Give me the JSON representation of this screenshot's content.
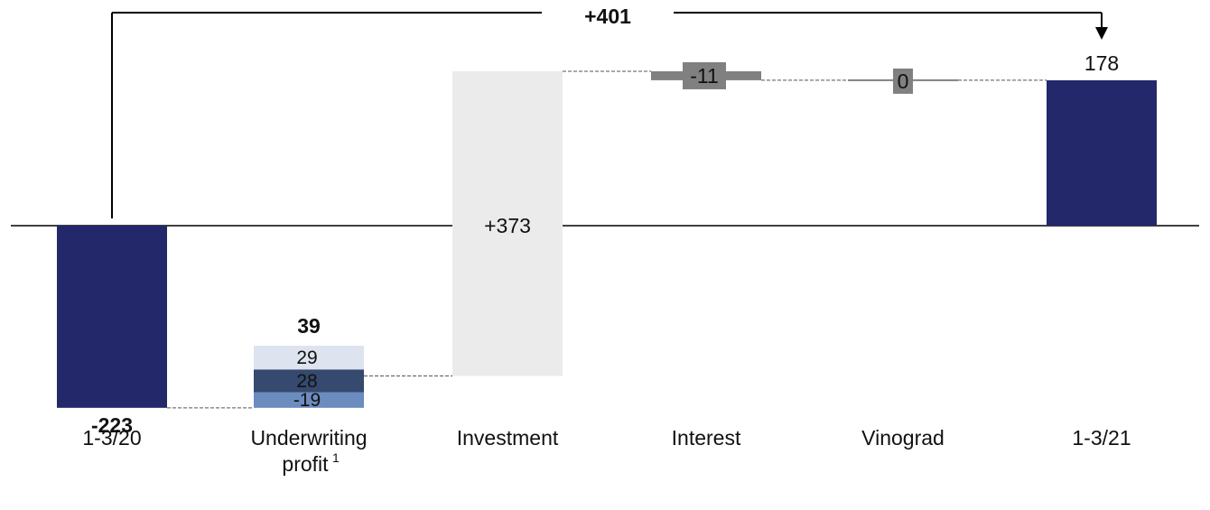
{
  "chart_data": {
    "type": "bar",
    "subtype": "waterfall",
    "categories": [
      "1-3/20",
      "Underwriting",
      "Investment",
      "Interest",
      "Vinograd",
      "1-3/21"
    ],
    "category_label_second_lines": [
      "",
      "profit",
      "",
      "",
      "",
      ""
    ],
    "footnote_marker": "1",
    "steps": [
      {
        "category": "1-3/20",
        "kind": "total",
        "value": -223,
        "label": "-223"
      },
      {
        "category": "Underwriting profit",
        "kind": "delta",
        "value": 39,
        "label": "39",
        "segments": [
          {
            "value": 29,
            "label": "29",
            "color": "#dde3ef"
          },
          {
            "value": 28,
            "label": "28",
            "color": "#36496e"
          },
          {
            "value": -19,
            "label": "-19",
            "color": "#6b8cbf"
          }
        ]
      },
      {
        "category": "Investment",
        "kind": "delta",
        "value": 373,
        "label": "+373",
        "color": "#ebebeb"
      },
      {
        "category": "Interest",
        "kind": "delta",
        "value": -11,
        "label": "-11",
        "color": "#808080"
      },
      {
        "category": "Vinograd",
        "kind": "delta",
        "value": 0,
        "label": "0",
        "color": "#808080"
      },
      {
        "category": "1-3/21",
        "kind": "total",
        "value": 178,
        "label": "178"
      }
    ],
    "bridge": {
      "from": "1-3/20",
      "to": "1-3/21",
      "label": "+401"
    },
    "colors": {
      "total": "#23286b",
      "axis": "#000000",
      "connector": "#555555"
    },
    "ylim": [
      -223,
      178
    ]
  }
}
